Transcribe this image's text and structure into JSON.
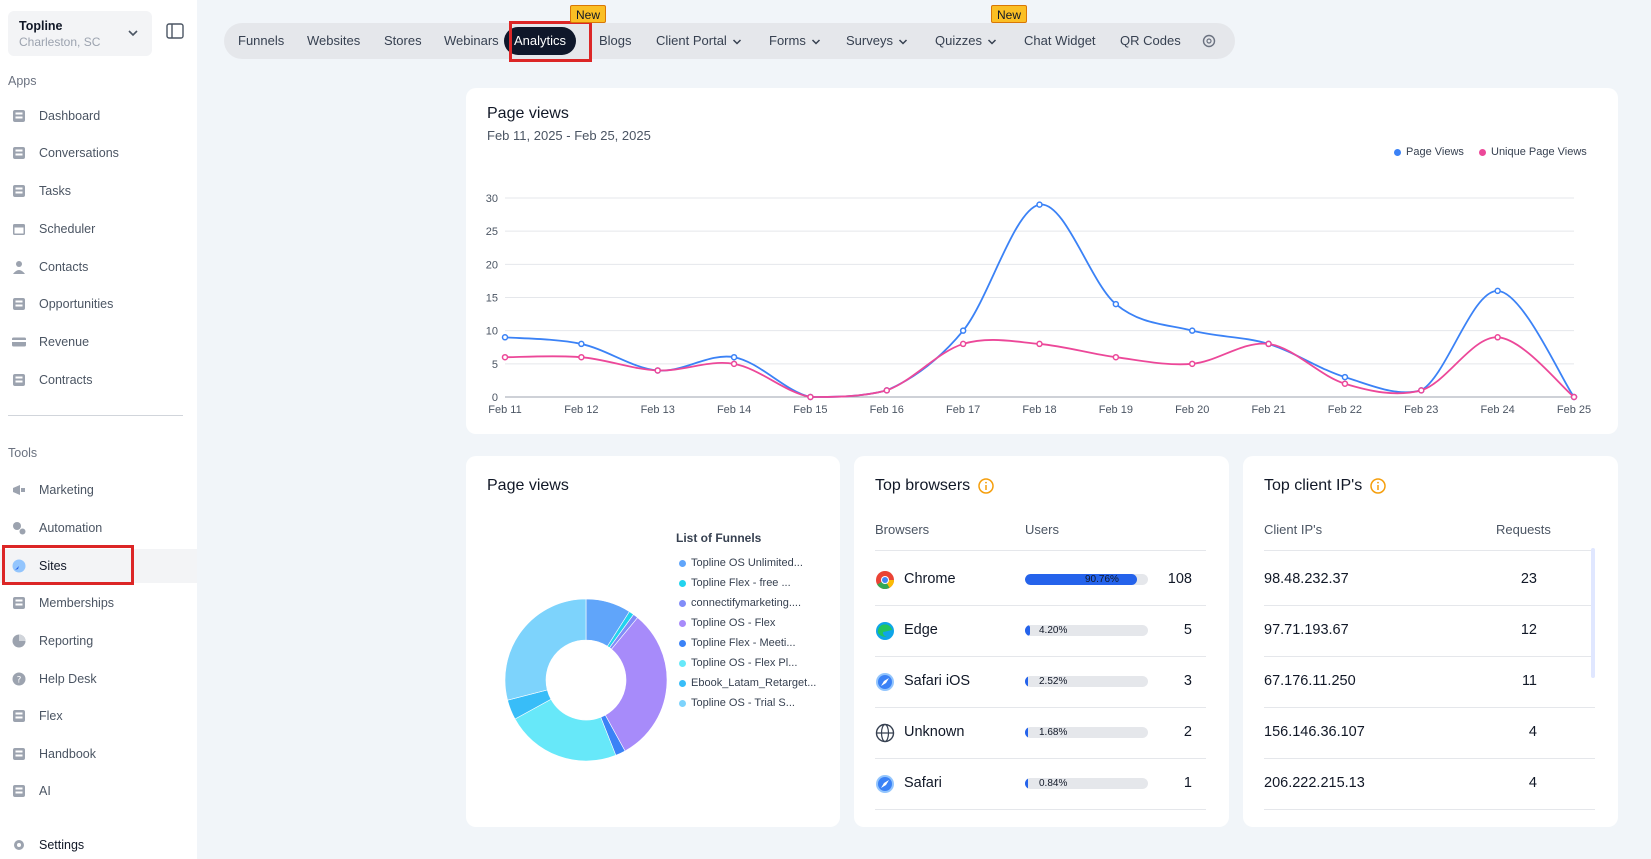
{
  "location": {
    "name": "Topline",
    "subtitle": "Charleston, SC"
  },
  "sidebar": {
    "apps_label": "Apps",
    "apps": [
      {
        "label": "Dashboard",
        "icon": "dashboard-icon"
      },
      {
        "label": "Conversations",
        "icon": "chat-icon"
      },
      {
        "label": "Tasks",
        "icon": "tasks-icon"
      },
      {
        "label": "Scheduler",
        "icon": "calendar-icon"
      },
      {
        "label": "Contacts",
        "icon": "person-icon"
      },
      {
        "label": "Opportunities",
        "icon": "target-icon"
      },
      {
        "label": "Revenue",
        "icon": "card-icon"
      },
      {
        "label": "Contracts",
        "icon": "document-icon"
      }
    ],
    "tools_label": "Tools",
    "tools": [
      {
        "label": "Marketing",
        "icon": "megaphone-icon"
      },
      {
        "label": "Automation",
        "icon": "gears-icon"
      },
      {
        "label": "Sites",
        "icon": "globe-icon",
        "active": true
      },
      {
        "label": "Memberships",
        "icon": "group-icon"
      },
      {
        "label": "Reporting",
        "icon": "pie-icon"
      },
      {
        "label": "Help Desk",
        "icon": "help-icon"
      },
      {
        "label": "Flex",
        "icon": "people-icon"
      },
      {
        "label": "Handbook",
        "icon": "book-icon"
      },
      {
        "label": "AI",
        "icon": "brain-icon"
      }
    ],
    "settings_label": "Settings"
  },
  "topnav": {
    "tabs": [
      {
        "label": "Funnels"
      },
      {
        "label": "Websites"
      },
      {
        "label": "Stores"
      },
      {
        "label": "Webinars"
      },
      {
        "label": "Analytics",
        "active": true,
        "badge": "New"
      },
      {
        "label": "Blogs"
      },
      {
        "label": "Client Portal",
        "dropdown": true
      },
      {
        "label": "Forms",
        "dropdown": true
      },
      {
        "label": "Surveys",
        "dropdown": true
      },
      {
        "label": "Quizzes",
        "dropdown": true,
        "badge": "New"
      },
      {
        "label": "Chat Widget"
      },
      {
        "label": "QR Codes"
      }
    ],
    "settings_icon": "gear-icon"
  },
  "pageviews_card": {
    "title": "Page views",
    "date_range": "Feb 11, 2025 - Feb 25, 2025",
    "legend": [
      "Page Views",
      "Unique Page Views"
    ]
  },
  "chart_data": [
    {
      "type": "line",
      "title": "Page views",
      "x": [
        "Feb 11",
        "Feb 12",
        "Feb 13",
        "Feb 14",
        "Feb 15",
        "Feb 16",
        "Feb 17",
        "Feb 18",
        "Feb 19",
        "Feb 20",
        "Feb 21",
        "Feb 22",
        "Feb 23",
        "Feb 24",
        "Feb 25"
      ],
      "series": [
        {
          "name": "Page Views",
          "color": "#3b82f6",
          "values": [
            9,
            8,
            4,
            6,
            0,
            1,
            10,
            29,
            14,
            10,
            8,
            3,
            1,
            16,
            0
          ]
        },
        {
          "name": "Unique Page Views",
          "color": "#ec4899",
          "values": [
            6,
            6,
            4,
            5,
            0,
            1,
            8,
            8,
            6,
            5,
            8,
            2,
            1,
            9,
            0
          ]
        }
      ],
      "ylim": [
        0,
        30
      ],
      "yticks": [
        0,
        5,
        10,
        15,
        20,
        25,
        30
      ],
      "grid": true,
      "legend_position": "top-right"
    },
    {
      "type": "pie",
      "title": "Page views",
      "legend_title": "List of Funnels",
      "slices": [
        {
          "label": "Topline OS Unlimited...",
          "value": 9,
          "color": "#60a5fa"
        },
        {
          "label": "Topline Flex - free ...",
          "value": 1,
          "color": "#22d3ee"
        },
        {
          "label": "connectifymarketing....",
          "value": 1,
          "color": "#818cf8"
        },
        {
          "label": "Topline OS - Flex",
          "value": 31,
          "color": "#a78bfa"
        },
        {
          "label": "Topline Flex - Meeti...",
          "value": 2,
          "color": "#3b82f6"
        },
        {
          "label": "Topline OS - Flex Pl...",
          "value": 23,
          "color": "#67e8f9"
        },
        {
          "label": "Ebook_Latam_Retarget...",
          "value": 4,
          "color": "#38bdf8"
        },
        {
          "label": "Topline OS - Trial S...",
          "value": 29,
          "color": "#7dd3fc"
        }
      ]
    }
  ],
  "browsers_card": {
    "title": "Top browsers",
    "col_browsers": "Browsers",
    "col_users": "Users",
    "rows": [
      {
        "name": "Chrome",
        "pct": "90.76%",
        "pct_value": 90.76,
        "users": "108",
        "icon": "chrome-icon"
      },
      {
        "name": "Edge",
        "pct": "4.20%",
        "pct_value": 4.2,
        "users": "5",
        "icon": "edge-icon"
      },
      {
        "name": "Safari iOS",
        "pct": "2.52%",
        "pct_value": 2.52,
        "users": "3",
        "icon": "safari-icon"
      },
      {
        "name": "Unknown",
        "pct": "1.68%",
        "pct_value": 1.68,
        "users": "2",
        "icon": "globe-icon"
      },
      {
        "name": "Safari",
        "pct": "0.84%",
        "pct_value": 0.84,
        "users": "1",
        "icon": "safari-icon"
      }
    ]
  },
  "ips_card": {
    "title": "Top client IP's",
    "col_ip": "Client IP's",
    "col_requests": "Requests",
    "rows": [
      {
        "ip": "98.48.232.37",
        "requests": "23"
      },
      {
        "ip": "97.71.193.67",
        "requests": "12"
      },
      {
        "ip": "67.176.11.250",
        "requests": "11"
      },
      {
        "ip": "156.146.36.107",
        "requests": "4"
      },
      {
        "ip": "206.222.215.13",
        "requests": "4"
      }
    ]
  }
}
